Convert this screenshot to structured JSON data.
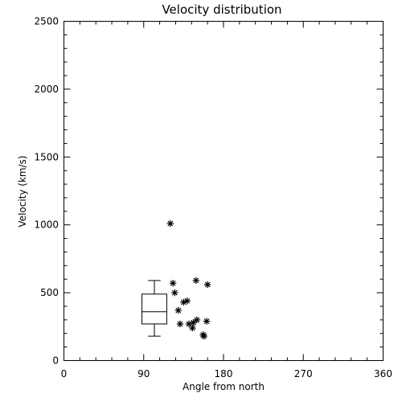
{
  "chart_data": {
    "type": "scatter",
    "title": "Velocity distribution",
    "xlabel": "Angle from north",
    "ylabel": "Velocity (km/s)",
    "xlim": [
      0,
      360
    ],
    "ylim": [
      0,
      2500
    ],
    "x_ticks": [
      0,
      90,
      180,
      270,
      360
    ],
    "y_ticks": [
      0,
      500,
      1000,
      1500,
      2000,
      2500
    ],
    "x_tick_labels": [
      "0",
      "90",
      "180",
      "270",
      "360"
    ],
    "y_tick_labels": [
      "0",
      "500",
      "1000",
      "1500",
      "2000",
      "2500"
    ],
    "grid": false,
    "legend": "none",
    "marker": "asterisk",
    "color": "#000000",
    "points": [
      {
        "x": 120,
        "y": 1010
      },
      {
        "x": 123,
        "y": 570
      },
      {
        "x": 125,
        "y": 500
      },
      {
        "x": 129,
        "y": 370
      },
      {
        "x": 131,
        "y": 270
      },
      {
        "x": 135,
        "y": 430
      },
      {
        "x": 139,
        "y": 440
      },
      {
        "x": 141,
        "y": 270
      },
      {
        "x": 145,
        "y": 240
      },
      {
        "x": 146,
        "y": 280
      },
      {
        "x": 149,
        "y": 590
      },
      {
        "x": 150,
        "y": 300
      },
      {
        "x": 157,
        "y": 190
      },
      {
        "x": 158,
        "y": 180
      },
      {
        "x": 161,
        "y": 290
      },
      {
        "x": 162,
        "y": 560
      }
    ],
    "boxplot": {
      "x": 102,
      "width_deg": 28,
      "cap_width_deg": 14,
      "min": 180,
      "q1": 270,
      "median": 360,
      "q3": 490,
      "max": 590
    }
  }
}
